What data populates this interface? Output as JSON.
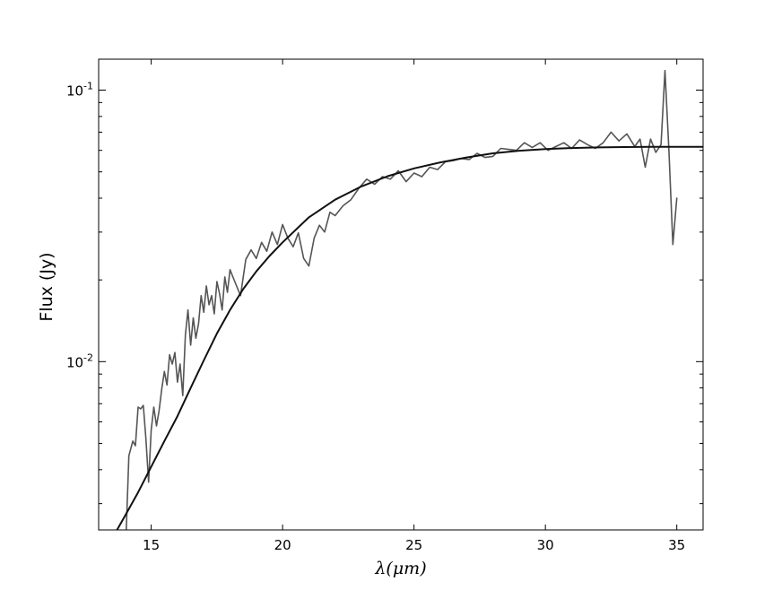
{
  "chart_data": {
    "type": "line",
    "title": "",
    "xlabel": "λ(μm)",
    "ylabel": "Flux (Jy)",
    "xlim": [
      13,
      36
    ],
    "ylim": [
      0.0024,
      0.13
    ],
    "yscale": "log",
    "grid": false,
    "x_ticks": [
      15,
      20,
      25,
      30,
      35
    ],
    "x_tick_labels": [
      "15",
      "20",
      "25",
      "30",
      "35"
    ],
    "y_ticks": [
      0.01,
      0.1
    ],
    "y_tick_labels": [
      {
        "base": "10",
        "exp": "-2"
      },
      {
        "base": "10",
        "exp": "-1"
      }
    ],
    "series": [
      {
        "style": "noisy-spectrum",
        "color": "#555555",
        "x": [
          14.05,
          14.15,
          14.3,
          14.4,
          14.5,
          14.6,
          14.7,
          14.8,
          14.9,
          15.0,
          15.1,
          15.2,
          15.3,
          15.4,
          15.5,
          15.6,
          15.7,
          15.8,
          15.9,
          16.0,
          16.1,
          16.2,
          16.3,
          16.4,
          16.5,
          16.6,
          16.7,
          16.8,
          16.9,
          17.0,
          17.1,
          17.2,
          17.3,
          17.4,
          17.5,
          17.6,
          17.7,
          17.8,
          17.9,
          18.0,
          18.2,
          18.4,
          18.6,
          18.8,
          19.0,
          19.2,
          19.4,
          19.6,
          19.8,
          20.0,
          20.2,
          20.4,
          20.6,
          20.8,
          21.0,
          21.2,
          21.4,
          21.6,
          21.8,
          22.0,
          22.3,
          22.6,
          22.9,
          23.2,
          23.5,
          23.8,
          24.1,
          24.4,
          24.7,
          25.0,
          25.3,
          25.6,
          25.9,
          26.2,
          26.5,
          26.8,
          27.1,
          27.4,
          27.7,
          28.0,
          28.3,
          28.6,
          28.9,
          29.2,
          29.5,
          29.8,
          30.1,
          30.4,
          30.7,
          31.0,
          31.3,
          31.6,
          31.9,
          32.2,
          32.5,
          32.8,
          33.1,
          33.4,
          33.6,
          33.8,
          34.0,
          34.2,
          34.4,
          34.55,
          34.7,
          34.85,
          35.0
        ],
        "y": [
          0.0024,
          0.0045,
          0.0051,
          0.0049,
          0.0068,
          0.0067,
          0.0069,
          0.0052,
          0.0036,
          0.0056,
          0.0068,
          0.0058,
          0.0066,
          0.0079,
          0.0092,
          0.0082,
          0.0106,
          0.0098,
          0.0108,
          0.0084,
          0.0098,
          0.0075,
          0.0125,
          0.0155,
          0.0115,
          0.0145,
          0.0122,
          0.0138,
          0.0175,
          0.0152,
          0.019,
          0.0162,
          0.0175,
          0.015,
          0.0197,
          0.0178,
          0.0155,
          0.0205,
          0.018,
          0.0218,
          0.0195,
          0.0175,
          0.0238,
          0.0258,
          0.024,
          0.0275,
          0.0255,
          0.03,
          0.027,
          0.032,
          0.0285,
          0.0265,
          0.0298,
          0.024,
          0.0225,
          0.0285,
          0.0318,
          0.03,
          0.0355,
          0.0345,
          0.0375,
          0.0395,
          0.0435,
          0.047,
          0.045,
          0.048,
          0.047,
          0.0505,
          0.046,
          0.0495,
          0.048,
          0.052,
          0.051,
          0.0545,
          0.055,
          0.056,
          0.0555,
          0.0585,
          0.0565,
          0.057,
          0.061,
          0.0605,
          0.06,
          0.064,
          0.0615,
          0.064,
          0.06,
          0.062,
          0.064,
          0.061,
          0.0655,
          0.063,
          0.061,
          0.064,
          0.07,
          0.065,
          0.069,
          0.062,
          0.066,
          0.052,
          0.066,
          0.059,
          0.063,
          0.118,
          0.06,
          0.027,
          0.04
        ]
      },
      {
        "style": "model-fit",
        "color": "#111111",
        "x": [
          13.7,
          14.0,
          14.5,
          15.0,
          15.5,
          16.0,
          16.5,
          17.0,
          17.5,
          18.0,
          18.5,
          19.0,
          19.5,
          20.0,
          21.0,
          22.0,
          23.0,
          24.0,
          25.0,
          26.0,
          27.0,
          28.0,
          29.0,
          30.0,
          31.0,
          32.0,
          33.0,
          34.0,
          35.0,
          36.0
        ],
        "y": [
          0.0024,
          0.0027,
          0.0033,
          0.0041,
          0.0051,
          0.0063,
          0.008,
          0.0101,
          0.0127,
          0.0155,
          0.0185,
          0.0215,
          0.0245,
          0.0275,
          0.034,
          0.0395,
          0.0442,
          0.0482,
          0.0515,
          0.0542,
          0.0565,
          0.0585,
          0.0598,
          0.0607,
          0.0612,
          0.0615,
          0.0617,
          0.0618,
          0.0618,
          0.0618
        ]
      }
    ]
  }
}
